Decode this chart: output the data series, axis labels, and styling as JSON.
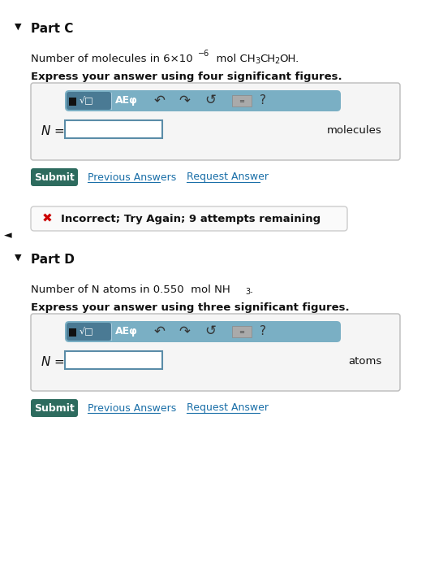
{
  "bg_color": "#e8e8e8",
  "panel_bg": "#f5f5f5",
  "part_c_label": "Part C",
  "part_d_label": "Part D",
  "part_c_sigfig": "Express your answer using four significant figures.",
  "part_d_sigfig": "Express your answer using three significant figures.",
  "molecules_label": "molecules",
  "atoms_label": "atoms",
  "submit_label": "Submit",
  "prev_answers": "Previous Answers",
  "request_answer": "Request Answer",
  "incorrect_msg": "Incorrect; Try Again; 9 attempts remaining",
  "toolbar_color": "#7aafc4",
  "toolbar_dark_color": "#4a7a94",
  "input_border": "#5a8ca8",
  "submit_bg": "#2d6b5e",
  "submit_text_color": "#ffffff",
  "link_color": "#1a6fa8",
  "incorrect_border": "#cccccc",
  "x_color": "#cc0000",
  "panel_border": "#bbbbbb",
  "white": "#ffffff",
  "black": "#111111",
  "icon_color": "#333333",
  "kbd_color": "#aaaaaa"
}
